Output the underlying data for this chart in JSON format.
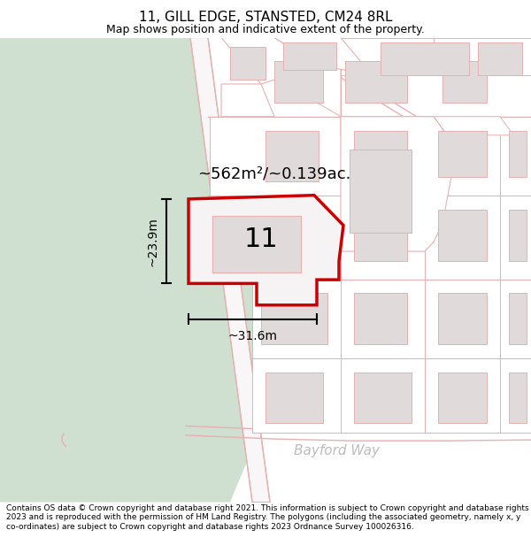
{
  "title_line1": "11, GILL EDGE, STANSTED, CM24 8RL",
  "title_line2": "Map shows position and indicative extent of the property.",
  "footer_text": "Contains OS data © Crown copyright and database right 2021. This information is subject to Crown copyright and database rights 2023 and is reproduced with the permission of HM Land Registry. The polygons (including the associated geometry, namely x, y co-ordinates) are subject to Crown copyright and database rights 2023 Ordnance Survey 100026316.",
  "area_label": "~562m²/~0.139ac.",
  "number_label": "11",
  "dim_width": "~31.6m",
  "dim_height": "~23.9m",
  "road_label": "Bayford Way",
  "bg_map_color": "#f0eeee",
  "green_area_color": "#cfdfd0",
  "plot_fill_color": "#f5f3f3",
  "plot_stroke_color": "#cc0000",
  "light_red": "#e8b0b0",
  "building_fill": "#e0dada",
  "street_fill": "#ffffff",
  "title_fontsize": 11,
  "subtitle_fontsize": 9,
  "footer_fontsize": 6.5
}
